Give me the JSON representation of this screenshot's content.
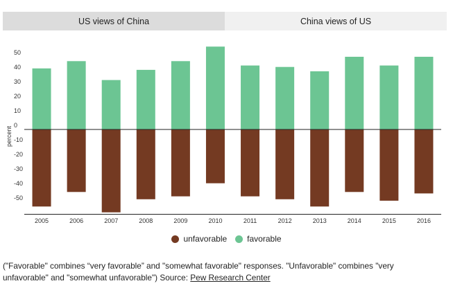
{
  "tabs": [
    {
      "label": "US views of China",
      "active": true
    },
    {
      "label": "China views of US",
      "active": false
    }
  ],
  "colors": {
    "unfavorable": "#743a22",
    "favorable": "#6cc593",
    "tab_active": "#dcdcdc",
    "tab_inactive": "#f0f0f0"
  },
  "chart_data": {
    "type": "bar",
    "title": "US views of China",
    "xlabel": "",
    "ylabel": "percent",
    "ylim": [
      -58,
      58
    ],
    "yticks": [
      50,
      40,
      30,
      20,
      10,
      0,
      -10,
      -20,
      -30,
      -40,
      -50
    ],
    "categories": [
      "2005",
      "2006",
      "2007",
      "2008",
      "2009",
      "2010",
      "2011",
      "2012",
      "2013",
      "2014",
      "2015",
      "2016"
    ],
    "series": [
      {
        "name": "unfavorable",
        "values": [
          -53,
          -43,
          -57,
          -48,
          -46,
          -37,
          -46,
          -48,
          -53,
          -43,
          -49,
          -44
        ]
      },
      {
        "name": "favorable",
        "values": [
          42,
          47,
          34,
          41,
          47,
          57,
          44,
          43,
          40,
          50,
          44,
          50
        ]
      }
    ],
    "legend_position": "bottom-center"
  },
  "legend": {
    "unfavorable_label": "unfavorable",
    "favorable_label": "favorable"
  },
  "note": {
    "text": "(\"Favorable\" combines “very favorable” and \"somewhat favorable\" responses. \"Unfavorable\" combines \"very unfavorable\" and \"somewhat unfavorable\") Source: ",
    "link_text": "Pew Research Center"
  }
}
